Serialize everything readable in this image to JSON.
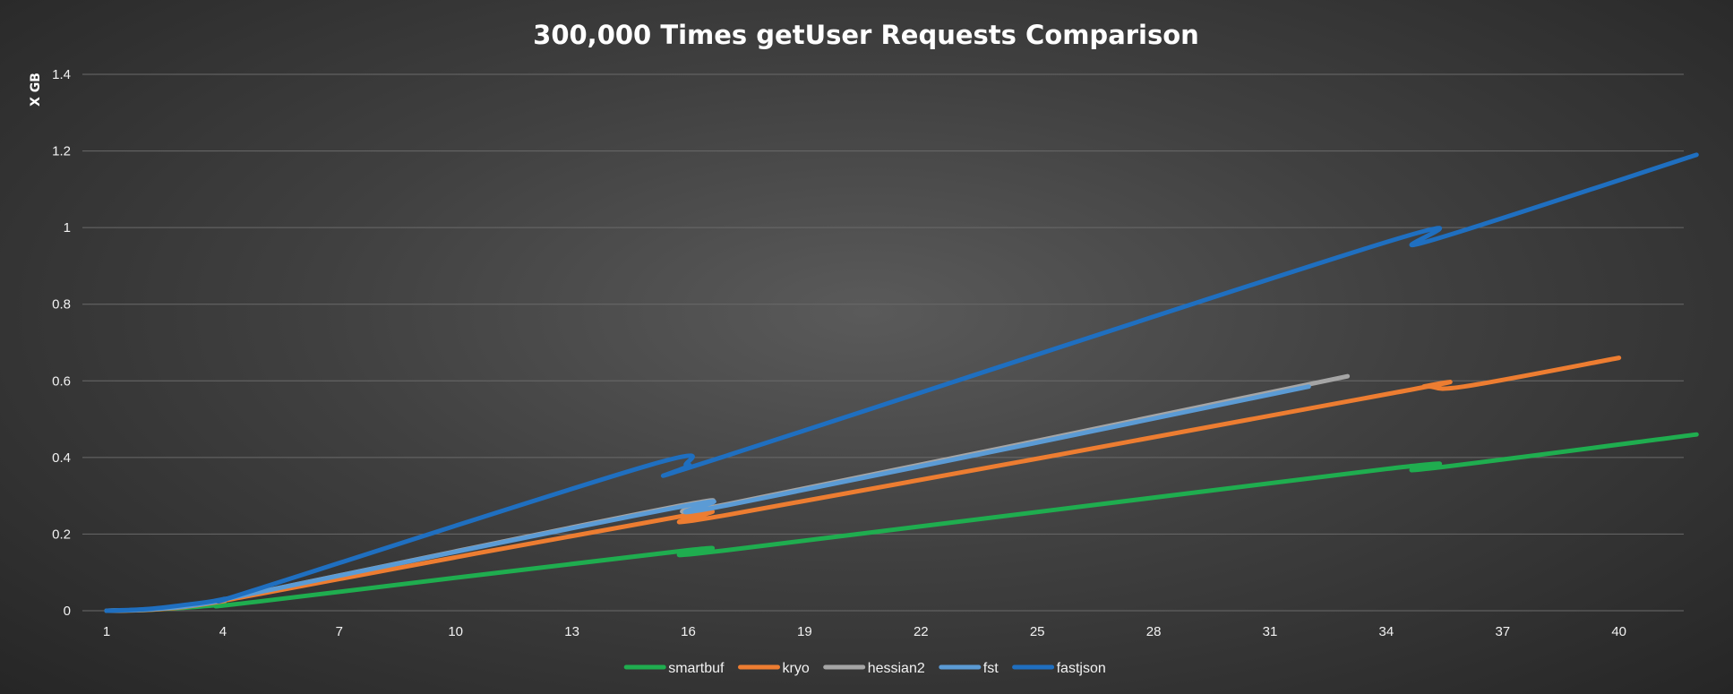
{
  "chart_data": {
    "type": "line",
    "title": "300,000 Times getUser Requests Comparison",
    "xlabel": "",
    "ylabel": "X GB",
    "xlim": [
      1,
      42
    ],
    "ylim": [
      0,
      1.4
    ],
    "yticks": [
      "0",
      "0.2",
      "0.4",
      "0.6",
      "0.8",
      "1",
      "1.2",
      "1.4"
    ],
    "xticks": [
      "1",
      "4",
      "7",
      "10",
      "13",
      "16",
      "19",
      "22",
      "25",
      "28",
      "31",
      "34",
      "37",
      "40"
    ],
    "grid": true,
    "legend_position": "bottom",
    "series": [
      {
        "name": "smartbuf",
        "color": "#1fad4f",
        "points": [
          [
            1,
            0
          ],
          [
            2,
            0.002
          ],
          [
            3,
            0.008
          ],
          [
            4,
            0.016
          ],
          [
            5,
            0.025
          ],
          [
            16,
            0.158
          ],
          [
            17,
            0.158
          ],
          [
            34,
            0.37
          ],
          [
            35,
            0.37
          ],
          [
            42,
            0.46
          ]
        ]
      },
      {
        "name": "kryo",
        "color": "#ed7d31",
        "points": [
          [
            1,
            0
          ],
          [
            2,
            0.002
          ],
          [
            3,
            0.01
          ],
          [
            4,
            0.025
          ],
          [
            5,
            0.045
          ],
          [
            16,
            0.25
          ],
          [
            17,
            0.25
          ],
          [
            34,
            0.565
          ],
          [
            35,
            0.585
          ],
          [
            36,
            0.585
          ],
          [
            40,
            0.66
          ]
        ]
      },
      {
        "name": "hessian2",
        "color": "#a5a5a5",
        "points": [
          [
            1,
            0
          ],
          [
            2,
            0.003
          ],
          [
            3,
            0.012
          ],
          [
            4,
            0.028
          ],
          [
            5,
            0.05
          ],
          [
            16,
            0.278
          ],
          [
            17,
            0.278
          ],
          [
            33,
            0.612
          ]
        ]
      },
      {
        "name": "fst",
        "color": "#5b9bd5",
        "points": [
          [
            1,
            0
          ],
          [
            2,
            0.003
          ],
          [
            3,
            0.011
          ],
          [
            4,
            0.027
          ],
          [
            5,
            0.05
          ],
          [
            16,
            0.275
          ],
          [
            17,
            0.275
          ],
          [
            32,
            0.585
          ]
        ]
      },
      {
        "name": "fastjson",
        "color": "#1f6fc0",
        "points": [
          [
            1,
            0
          ],
          [
            2,
            0.004
          ],
          [
            3,
            0.015
          ],
          [
            4,
            0.03
          ],
          [
            5,
            0.06
          ],
          [
            15,
            0.38
          ],
          [
            16,
            0.38
          ],
          [
            17,
            0.405
          ],
          [
            34,
            0.962
          ],
          [
            35,
            0.962
          ],
          [
            42,
            1.19
          ]
        ]
      }
    ]
  }
}
